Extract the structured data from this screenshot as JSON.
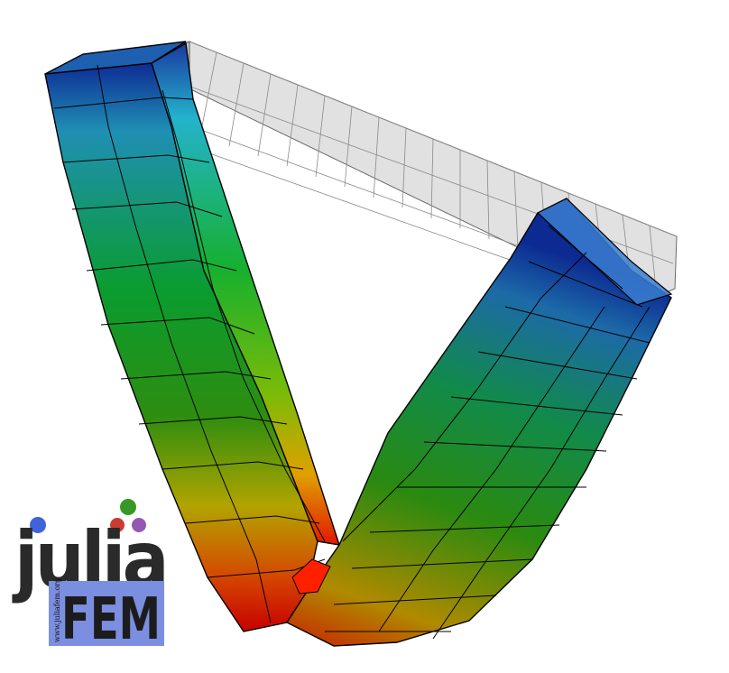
{
  "scene": {
    "subject": "deformed-beam-finite-element-mesh",
    "colors": {
      "high": "#e00000",
      "upper_mid": "#d8b800",
      "mid": "#00a400",
      "lower_mid": "#00b0c8",
      "low": "#002090",
      "undeformed_mesh": "#b4b4b4",
      "mesh_lines": "#000000"
    }
  },
  "logo": {
    "word": "julia",
    "subword": "FEM",
    "url": "www.juliafem.org",
    "colors": {
      "word": "#2a2a2a",
      "subword_box": "#7b8ee0",
      "subword_text": "#1c1c1c",
      "dot_blue": "#4064d8",
      "dot_red": "#cb3c33",
      "dot_green": "#389826",
      "dot_purple": "#9558b2"
    }
  }
}
